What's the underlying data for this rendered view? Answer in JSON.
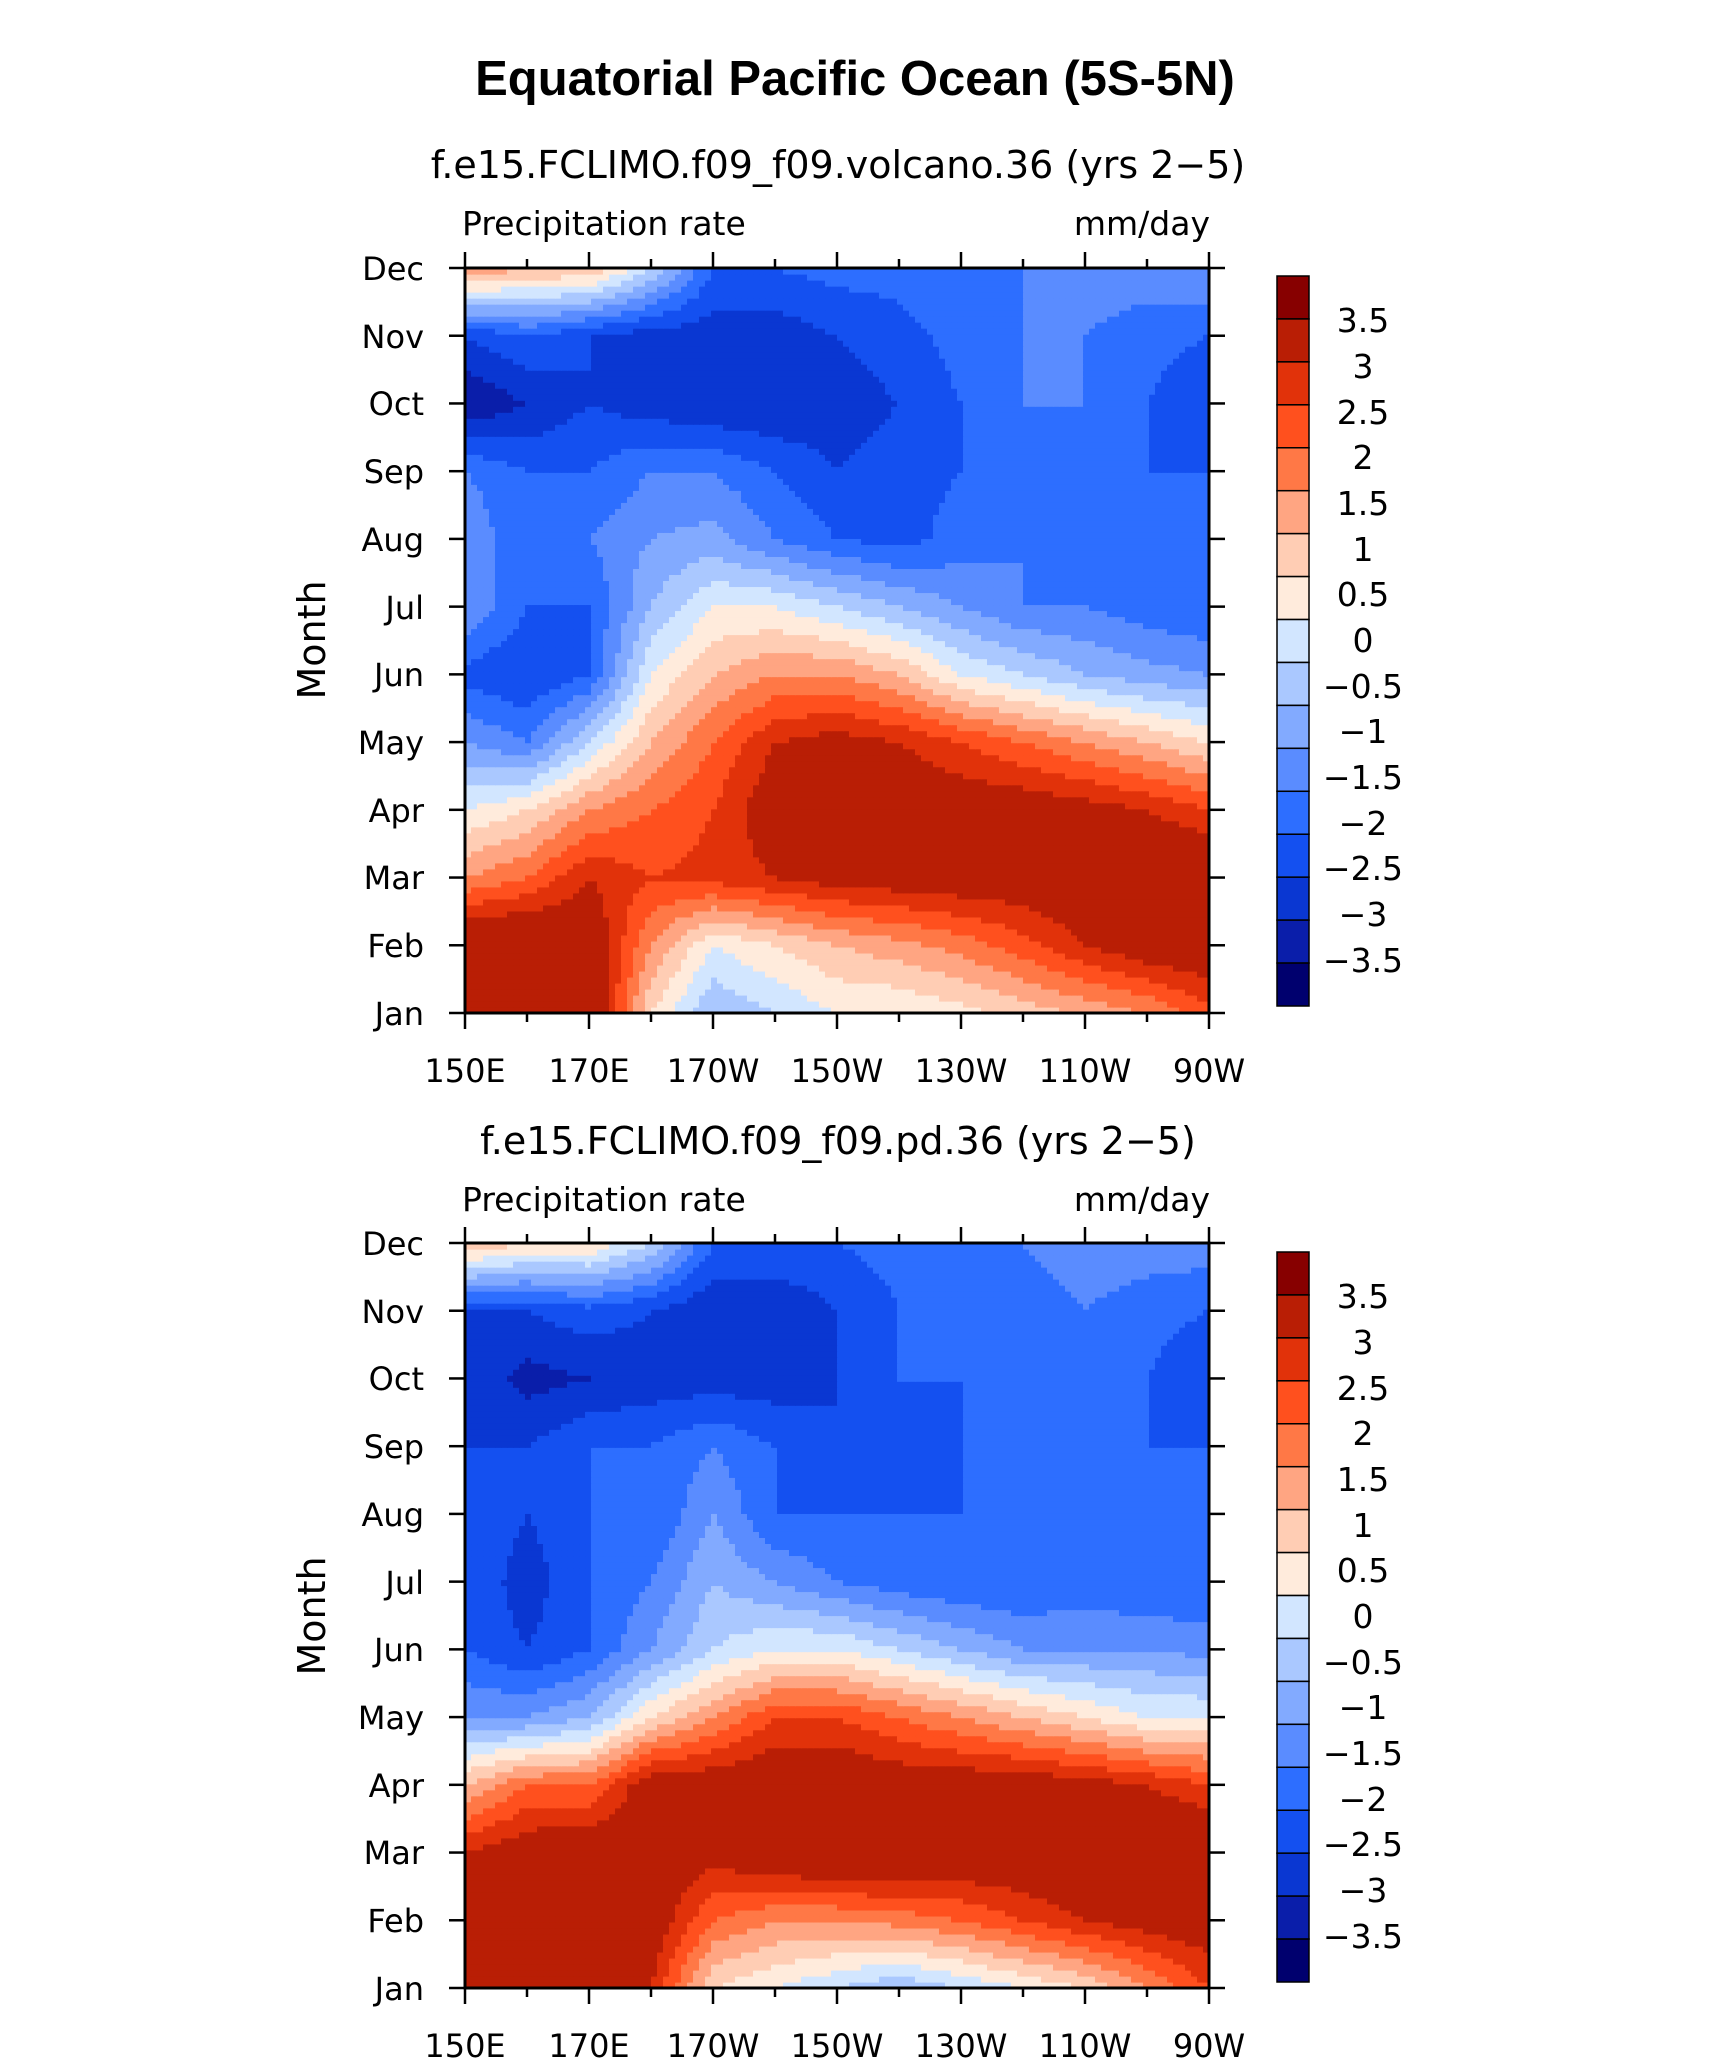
{
  "figure": {
    "title": "Equatorial Pacific Ocean (5S-5N)"
  },
  "palette": [
    "#00006e",
    "#0a1eaa",
    "#0a37d2",
    "#1450f0",
    "#2d6eff",
    "#5a8cff",
    "#82aaff",
    "#aac8ff",
    "#d2e6ff",
    "#ffebdc",
    "#ffcdb4",
    "#ffa582",
    "#ff7846",
    "#ff501e",
    "#e1320a",
    "#b91e05",
    "#870000"
  ],
  "chart_data": [
    {
      "type": "heatmap",
      "title": "f.e15.FCLIMO.f09_f09.volcano.36 (yrs 2−5)",
      "left_annotation": "Precipitation rate",
      "right_annotation": "mm/day",
      "ylabel": "Month",
      "xticks": [
        "150E",
        "170E",
        "170W",
        "150W",
        "130W",
        "110W",
        "90W"
      ],
      "yticks": [
        "Jan",
        "Feb",
        "Mar",
        "Apr",
        "May",
        "Jun",
        "Jul",
        "Aug",
        "Sep",
        "Oct",
        "Nov",
        "Dec"
      ],
      "colorbar_labels": [
        "3.5",
        "3",
        "2.5",
        "2",
        "1.5",
        "1",
        "0.5",
        "0",
        "−0.5",
        "−1",
        "−1.5",
        "−2",
        "−2.5",
        "−3",
        "−3.5"
      ],
      "xlim_deg_east": [
        150,
        270
      ],
      "levels": [
        -3.5,
        -3,
        -2.5,
        -2,
        -1.5,
        -1,
        -0.5,
        0,
        0.5,
        1,
        1.5,
        2,
        2.5,
        3,
        3.5
      ],
      "x_deg_east": [
        150,
        160,
        170,
        180,
        190,
        200,
        210,
        220,
        230,
        240,
        250,
        260,
        270
      ],
      "months": [
        "Jan",
        "Feb",
        "Mar",
        "Apr",
        "May",
        "Jun",
        "Jul",
        "Aug",
        "Sep",
        "Oct",
        "Nov",
        "Dec"
      ],
      "values": [
        [
          4.5,
          4.5,
          4.5,
          1.0,
          -0.5,
          0.0,
          0.5,
          0.5,
          0.8,
          1.2,
          1.6,
          2.0,
          2.8
        ],
        [
          4.5,
          4.5,
          4.2,
          2.0,
          0.5,
          1.0,
          1.5,
          1.8,
          2.2,
          2.8,
          3.5,
          4.0,
          4.2
        ],
        [
          2.0,
          2.5,
          3.5,
          3.0,
          3.2,
          3.5,
          3.8,
          3.9,
          4.0,
          4.0,
          4.2,
          4.5,
          4.5
        ],
        [
          0.5,
          1.0,
          2.0,
          2.5,
          3.0,
          4.0,
          4.2,
          4.2,
          4.0,
          4.0,
          3.8,
          3.5,
          3.0
        ],
        [
          -1.0,
          -1.5,
          0.0,
          1.5,
          2.5,
          3.5,
          3.8,
          3.5,
          3.0,
          2.5,
          2.0,
          1.5,
          1.0
        ],
        [
          -2.2,
          -2.5,
          -2.0,
          0.5,
          1.5,
          2.0,
          2.0,
          1.5,
          0.5,
          0.0,
          -0.5,
          -0.8,
          -1.0
        ],
        [
          -1.0,
          -2.0,
          -2.0,
          -0.5,
          0.5,
          0.5,
          0.0,
          -0.5,
          -1.0,
          -1.5,
          -1.5,
          -1.8,
          -2.0
        ],
        [
          -1.0,
          -2.0,
          -1.5,
          -1.0,
          -0.8,
          -1.5,
          -2.0,
          -2.2,
          -1.8,
          -1.5,
          -1.8,
          -2.0,
          -2.0
        ],
        [
          -1.5,
          -2.0,
          -2.0,
          -1.5,
          -1.5,
          -2.0,
          -2.5,
          -2.2,
          -2.0,
          -1.5,
          -1.8,
          -2.0,
          -2.0
        ],
        [
          -3.5,
          -3.0,
          -2.5,
          -2.8,
          -3.0,
          -3.0,
          -2.8,
          -2.5,
          -2.0,
          -1.5,
          -1.5,
          -2.0,
          -2.5
        ],
        [
          -2.5,
          -2.0,
          -2.5,
          -2.8,
          -2.8,
          -2.8,
          -2.5,
          -2.2,
          -1.8,
          -1.5,
          -1.5,
          -1.8,
          -2.0
        ],
        [
          2.0,
          1.5,
          1.5,
          0.0,
          -2.0,
          -2.0,
          -1.8,
          -1.8,
          -1.5,
          -1.5,
          -1.2,
          -1.2,
          -1.0
        ]
      ]
    },
    {
      "type": "heatmap",
      "title": "f.e15.FCLIMO.f09_f09.pd.36 (yrs 2−5)",
      "left_annotation": "Precipitation rate",
      "right_annotation": "mm/day",
      "ylabel": "Month",
      "xticks": [
        "150E",
        "170E",
        "170W",
        "150W",
        "130W",
        "110W",
        "90W"
      ],
      "yticks": [
        "Jan",
        "Feb",
        "Mar",
        "Apr",
        "May",
        "Jun",
        "Jul",
        "Aug",
        "Sep",
        "Oct",
        "Nov",
        "Dec"
      ],
      "colorbar_labels": [
        "3.5",
        "3",
        "2.5",
        "2",
        "1.5",
        "1",
        "0.5",
        "0",
        "−0.5",
        "−1",
        "−1.5",
        "−2",
        "−2.5",
        "−3",
        "−3.5"
      ],
      "xlim_deg_east": [
        150,
        270
      ],
      "levels": [
        -3.5,
        -3,
        -2.5,
        -2,
        -1.5,
        -1,
        -0.5,
        0,
        0.5,
        1,
        1.5,
        2,
        2.5,
        3,
        3.5
      ],
      "x_deg_east": [
        150,
        160,
        170,
        180,
        190,
        200,
        210,
        220,
        230,
        240,
        250,
        260,
        270
      ],
      "months": [
        "Jan",
        "Feb",
        "Mar",
        "Apr",
        "May",
        "Jun",
        "Jul",
        "Aug",
        "Sep",
        "Oct",
        "Nov",
        "Dec"
      ],
      "values": [
        [
          4.5,
          4.5,
          4.5,
          3.5,
          1.0,
          0.5,
          0.0,
          -0.5,
          0.0,
          0.5,
          1.0,
          2.0,
          3.0
        ],
        [
          4.5,
          4.5,
          4.5,
          4.0,
          2.5,
          2.0,
          2.0,
          2.2,
          2.5,
          3.0,
          3.5,
          3.8,
          4.0
        ],
        [
          3.5,
          4.0,
          4.2,
          4.0,
          3.8,
          4.2,
          4.5,
          4.5,
          4.2,
          4.2,
          4.5,
          4.5,
          4.5
        ],
        [
          1.5,
          2.5,
          2.5,
          4.0,
          4.0,
          4.2,
          4.2,
          4.0,
          4.0,
          4.0,
          3.8,
          3.5,
          3.0
        ],
        [
          -1.0,
          -1.0,
          -0.5,
          1.0,
          2.0,
          3.0,
          3.0,
          2.5,
          2.0,
          1.5,
          1.0,
          0.5,
          0.5
        ],
        [
          -2.0,
          -2.5,
          -2.0,
          -1.0,
          0.0,
          0.5,
          0.5,
          0.0,
          -0.5,
          -1.0,
          -1.0,
          -1.0,
          -1.2
        ],
        [
          -2.0,
          -2.8,
          -2.0,
          -1.5,
          -0.5,
          -1.0,
          -1.5,
          -1.8,
          -2.0,
          -2.0,
          -1.8,
          -2.0,
          -2.0
        ],
        [
          -2.0,
          -2.5,
          -2.0,
          -2.0,
          -1.0,
          -2.0,
          -2.0,
          -2.0,
          -2.0,
          -1.8,
          -1.8,
          -2.0,
          -2.0
        ],
        [
          -2.5,
          -2.5,
          -2.0,
          -2.0,
          -1.5,
          -2.0,
          -2.5,
          -2.2,
          -2.0,
          -1.8,
          -1.8,
          -2.0,
          -2.0
        ],
        [
          -2.5,
          -3.2,
          -3.0,
          -2.8,
          -2.8,
          -2.8,
          -2.5,
          -2.0,
          -2.0,
          -1.5,
          -1.5,
          -2.0,
          -2.5
        ],
        [
          -2.5,
          -2.5,
          -2.2,
          -2.5,
          -3.0,
          -3.0,
          -2.5,
          -2.0,
          -1.8,
          -1.8,
          -1.5,
          -1.8,
          -2.0
        ],
        [
          1.5,
          1.0,
          1.0,
          0.0,
          -2.0,
          -2.0,
          -2.0,
          -1.8,
          -1.5,
          -1.5,
          -1.2,
          -1.2,
          -1.2
        ]
      ]
    }
  ]
}
